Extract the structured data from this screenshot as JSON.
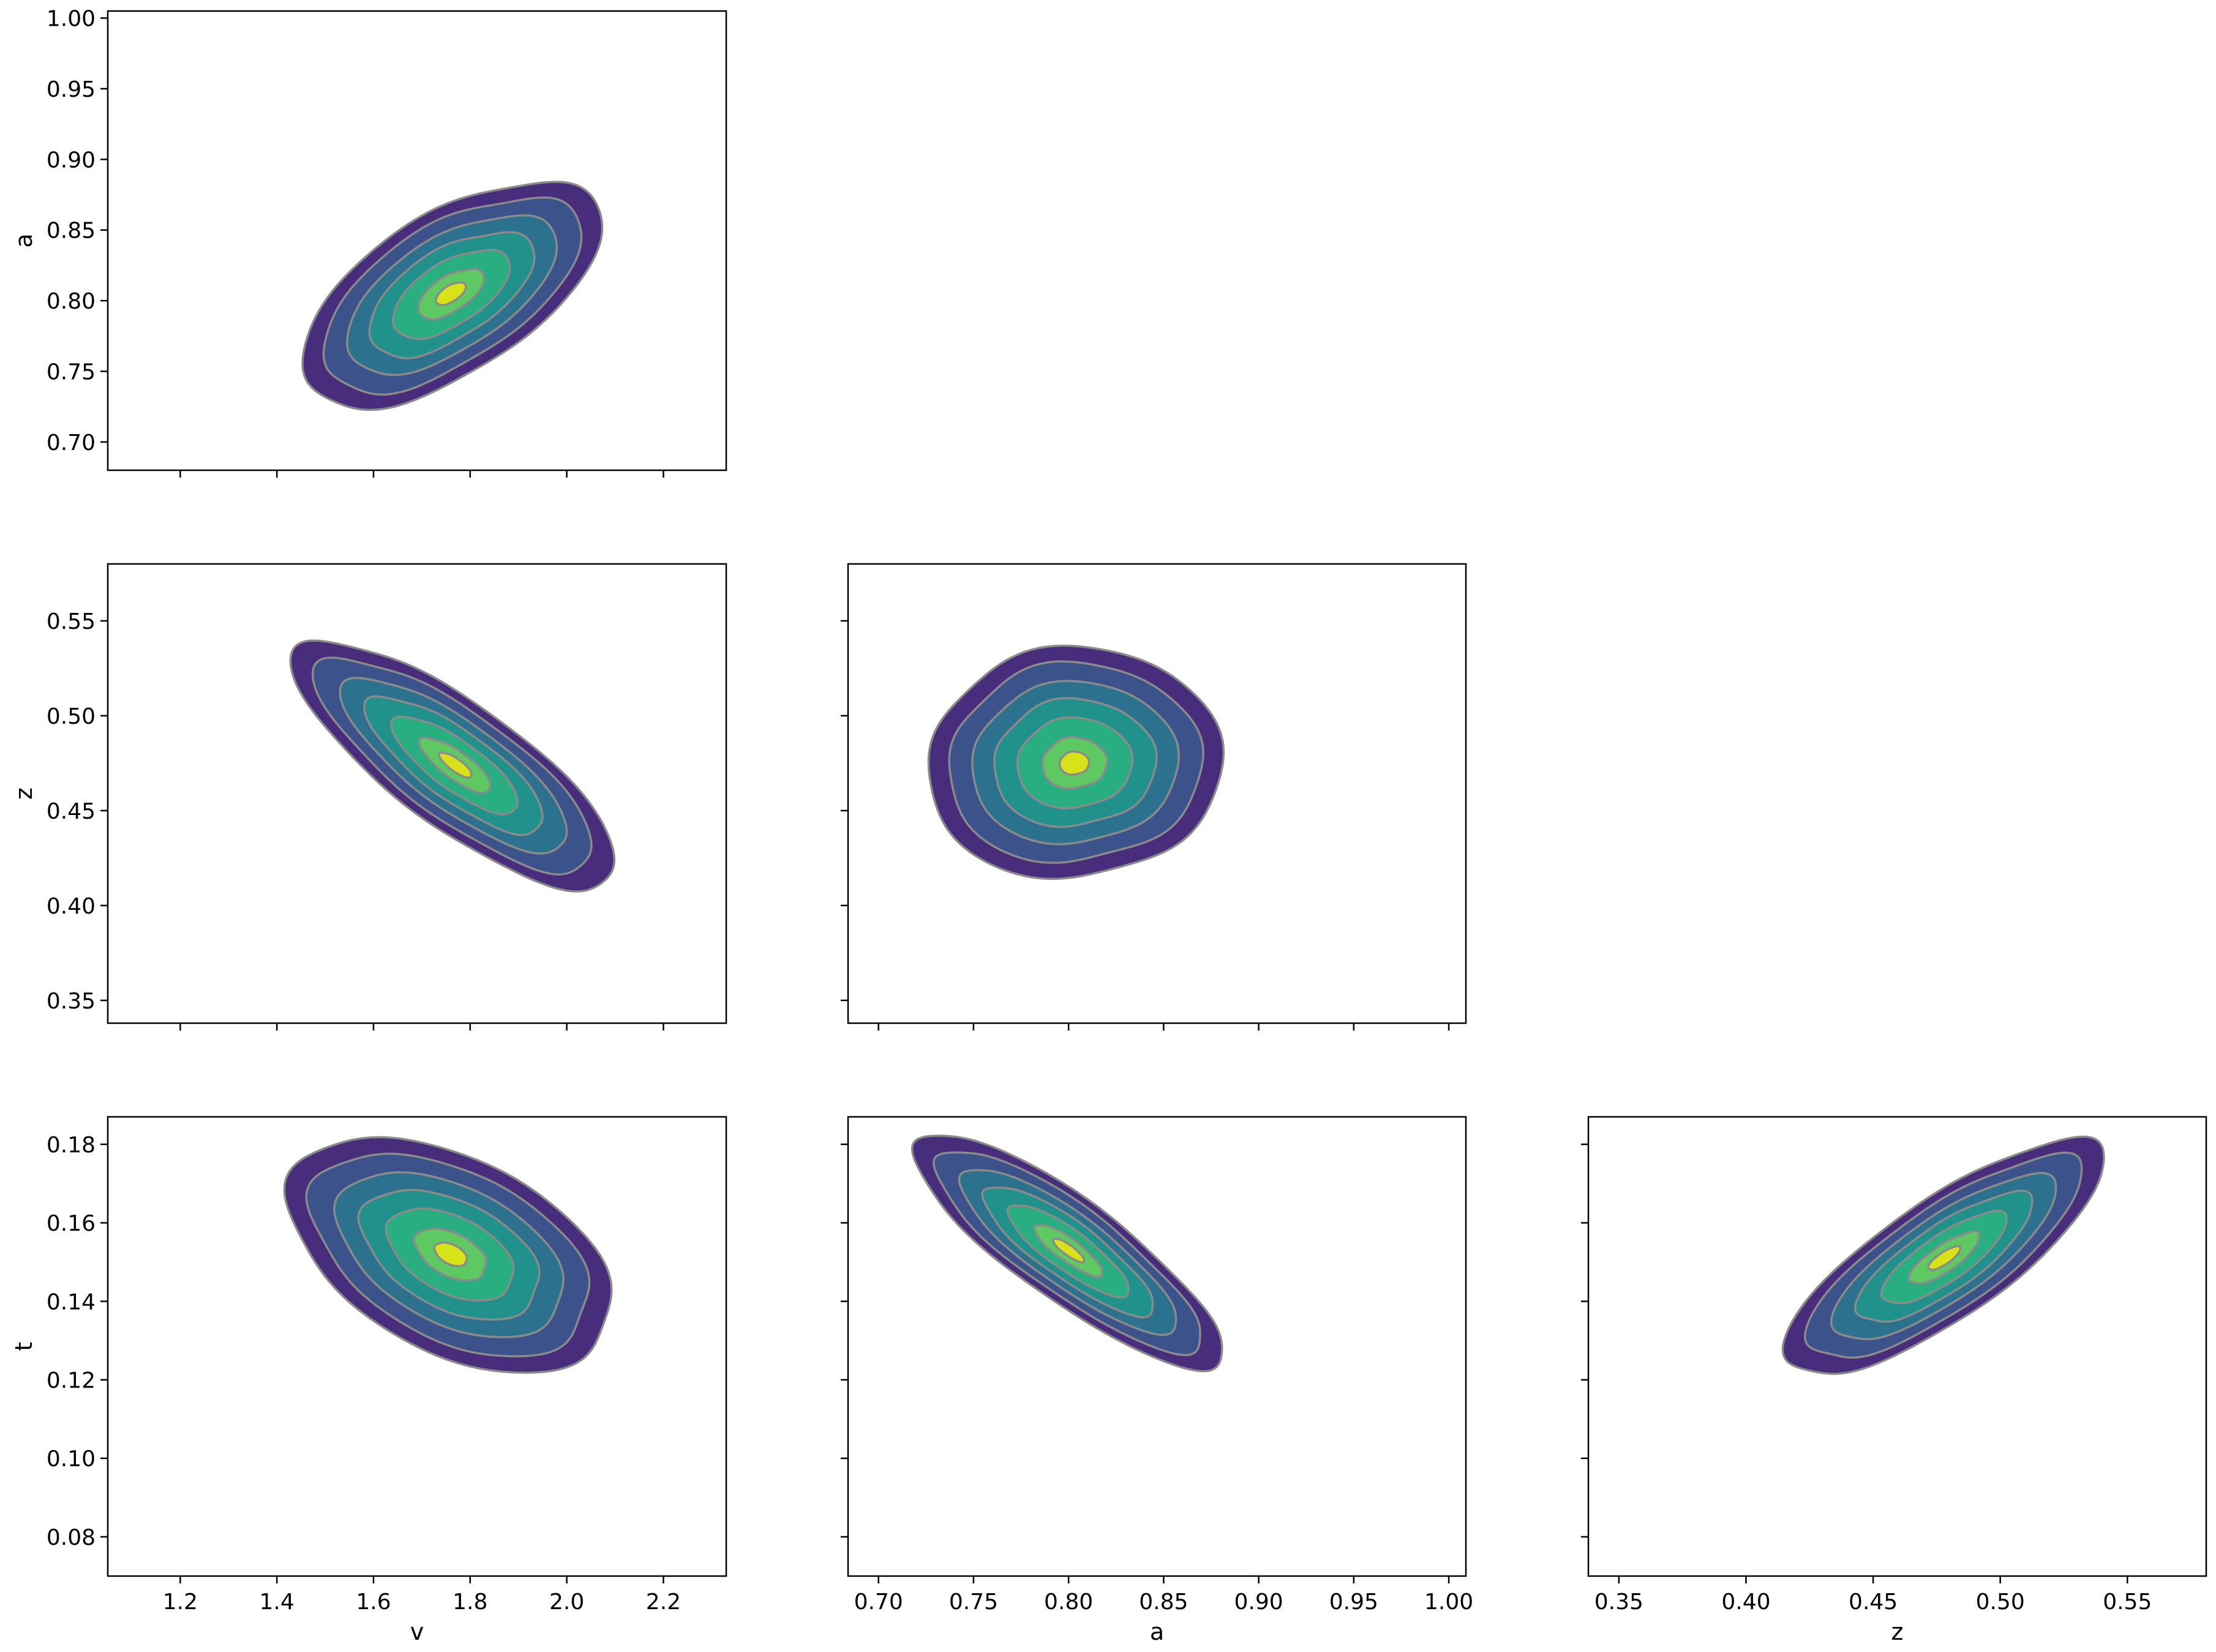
{
  "figure": {
    "title": "",
    "colors": {
      "contour_fill": [
        "#440154",
        "#472d7b",
        "#3b528b",
        "#2c728e",
        "#21918c",
        "#28ae80",
        "#5ec962",
        "#addc30",
        "#d7e219"
      ],
      "contour_line": "#8a8a8a",
      "axes_frame": "#000000",
      "background": "#ffffff"
    }
  },
  "chart_data": [
    {
      "type": "kde-contour",
      "panel": "v-vs-a",
      "xlabel": "",
      "ylabel": "a",
      "xlim": [
        1.05,
        2.33
      ],
      "ylim": [
        0.68,
        1.005
      ],
      "xticks": [
        1.2,
        1.4,
        1.6,
        1.8,
        2.0,
        2.2
      ],
      "xtick_labels": [],
      "yticks": [
        0.7,
        0.75,
        0.8,
        0.85,
        0.9,
        0.95,
        1.0
      ],
      "ytick_labels": [
        "0.70",
        "0.75",
        "0.80",
        "0.85",
        "0.90",
        "0.95",
        "1.00"
      ],
      "center": {
        "x": 1.76,
        "y": 0.805
      },
      "x_extent": [
        1.47,
        2.09
      ],
      "y_extent": [
        0.733,
        0.893
      ],
      "correlation": 0.6,
      "levels": 6
    },
    {
      "type": "kde-contour",
      "panel": "v-vs-z",
      "xlabel": "",
      "ylabel": "z",
      "xlim": [
        1.05,
        2.33
      ],
      "ylim": [
        0.338,
        0.58
      ],
      "xticks": [
        1.2,
        1.4,
        1.6,
        1.8,
        2.0,
        2.2
      ],
      "xtick_labels": [],
      "yticks": [
        0.35,
        0.4,
        0.45,
        0.5,
        0.55
      ],
      "ytick_labels": [
        "0.35",
        "0.40",
        "0.45",
        "0.50",
        "0.55"
      ],
      "center": {
        "x": 1.77,
        "y": 0.474
      },
      "x_extent": [
        1.43,
        2.1
      ],
      "y_extent": [
        0.407,
        0.538
      ],
      "correlation": -0.8,
      "levels": 6
    },
    {
      "type": "kde-contour",
      "panel": "a-vs-z",
      "xlabel": "",
      "ylabel": "",
      "xlim": [
        0.684,
        1.009
      ],
      "ylim": [
        0.338,
        0.58
      ],
      "xticks": [
        0.7,
        0.75,
        0.8,
        0.85,
        0.9,
        0.95,
        1.0
      ],
      "xtick_labels": [],
      "yticks": [
        0.35,
        0.4,
        0.45,
        0.5,
        0.55
      ],
      "ytick_labels": [],
      "center": {
        "x": 0.803,
        "y": 0.475
      },
      "x_extent": [
        0.735,
        0.89
      ],
      "y_extent": [
        0.414,
        0.536
      ],
      "correlation": 0.05,
      "levels": 6
    },
    {
      "type": "kde-contour",
      "panel": "v-vs-t",
      "xlabel": "v",
      "ylabel": "t",
      "xlim": [
        1.05,
        2.33
      ],
      "ylim": [
        0.07,
        0.187
      ],
      "xticks": [
        1.2,
        1.4,
        1.6,
        1.8,
        2.0,
        2.2
      ],
      "xtick_labels": [
        "1.2",
        "1.4",
        "1.6",
        "1.8",
        "2.0",
        "2.2"
      ],
      "yticks": [
        0.08,
        0.1,
        0.12,
        0.14,
        0.16,
        0.18
      ],
      "ytick_labels": [
        "0.08",
        "0.10",
        "0.12",
        "0.14",
        "0.16",
        "0.18"
      ],
      "center": {
        "x": 1.76,
        "y": 0.152
      },
      "x_extent": [
        1.43,
        2.1
      ],
      "y_extent": [
        0.117,
        0.177
      ],
      "correlation": -0.45,
      "levels": 6
    },
    {
      "type": "kde-contour",
      "panel": "a-vs-t",
      "xlabel": "a",
      "ylabel": "",
      "xlim": [
        0.684,
        1.009
      ],
      "ylim": [
        0.07,
        0.187
      ],
      "xticks": [
        0.7,
        0.75,
        0.8,
        0.85,
        0.9,
        0.95,
        1.0
      ],
      "xtick_labels": [
        "0.70",
        "0.75",
        "0.80",
        "0.85",
        "0.90",
        "0.95",
        "1.00"
      ],
      "yticks": [
        0.08,
        0.1,
        0.12,
        0.14,
        0.16,
        0.18
      ],
      "ytick_labels": [],
      "center": {
        "x": 0.8,
        "y": 0.153
      },
      "x_extent": [
        0.727,
        0.89
      ],
      "y_extent": [
        0.117,
        0.177
      ],
      "correlation": -0.85,
      "levels": 6
    },
    {
      "type": "kde-contour",
      "panel": "z-vs-t",
      "xlabel": "z",
      "ylabel": "",
      "xlim": [
        0.338,
        0.581
      ],
      "ylim": [
        0.07,
        0.187
      ],
      "xticks": [
        0.35,
        0.4,
        0.45,
        0.5,
        0.55
      ],
      "xtick_labels": [
        "0.35",
        "0.40",
        "0.45",
        "0.50",
        "0.55"
      ],
      "yticks": [
        0.08,
        0.1,
        0.12,
        0.14,
        0.16,
        0.18
      ],
      "ytick_labels": [],
      "center": {
        "x": 0.478,
        "y": 0.151
      },
      "x_extent": [
        0.414,
        0.54
      ],
      "y_extent": [
        0.117,
        0.177
      ],
      "correlation": 0.8,
      "levels": 6
    }
  ]
}
